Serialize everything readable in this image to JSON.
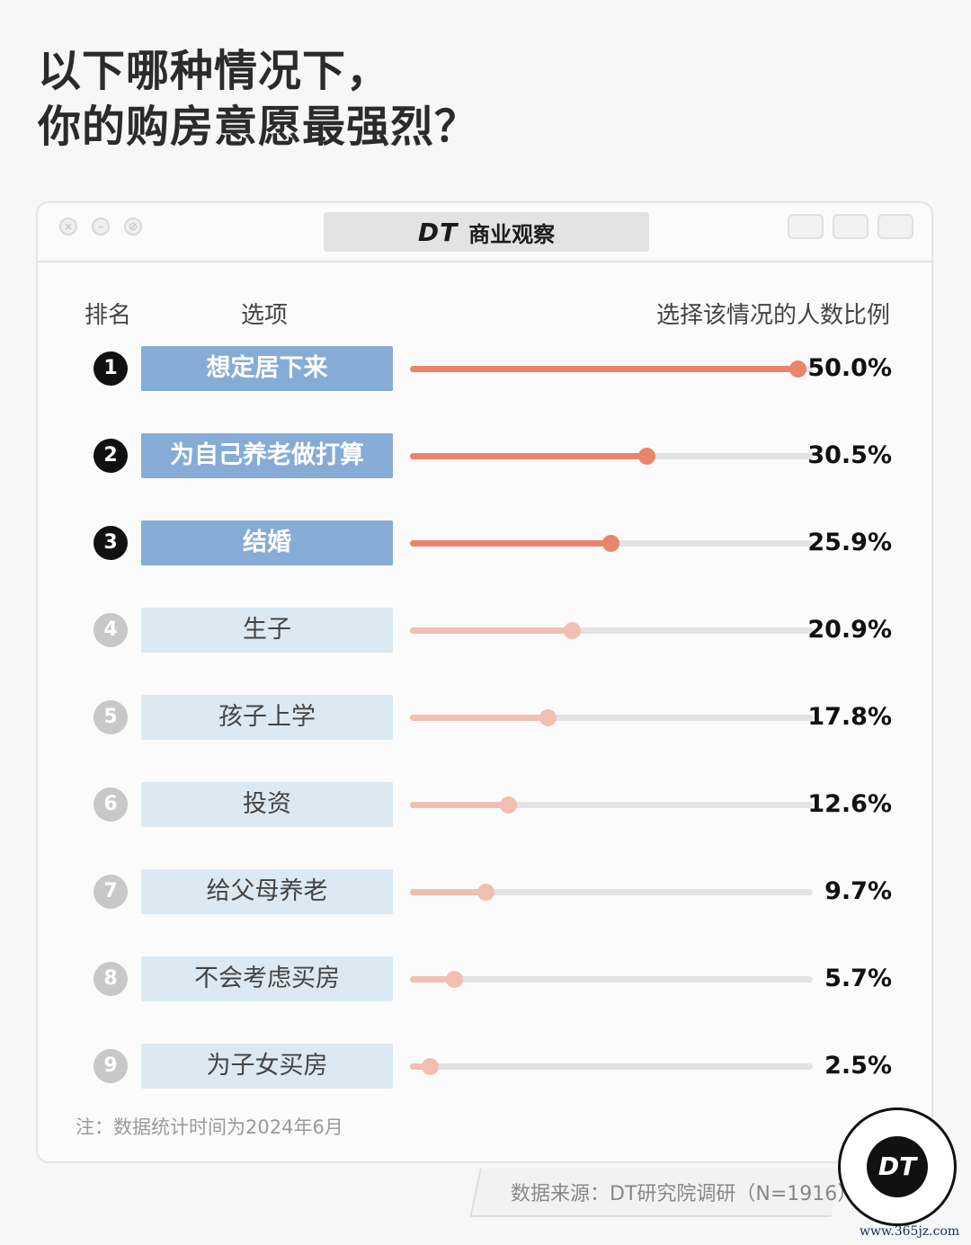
{
  "title": {
    "line1": "以下哪种情况下，",
    "line2": "你的购房意愿最强烈？"
  },
  "window": {
    "brand_logo": "DT",
    "brand_name": "商业观察",
    "controls": [
      "close-icon",
      "minimize-icon",
      "maximize-icon"
    ],
    "right_controls": [
      "record-icon",
      "share-icon",
      "copy-icon"
    ]
  },
  "headers": {
    "rank": "排名",
    "option": "选项",
    "value": "选择该情况的人数比例"
  },
  "colors": {
    "top_bar": "#e8856a",
    "low_bar": "#f1bfb1",
    "top_label_bg": "#86acd5",
    "low_label_bg": "#dce9f3"
  },
  "chart_data": {
    "type": "bar",
    "categories": [
      "想定居下来",
      "为自己养老做打算",
      "结婚",
      "生子",
      "孩子上学",
      "投资",
      "给父母养老",
      "不会考虑买房",
      "为子女买房"
    ],
    "ranks": [
      "1",
      "2",
      "3",
      "4",
      "5",
      "6",
      "7",
      "8",
      "9"
    ],
    "values": [
      50.0,
      30.5,
      25.9,
      20.9,
      17.8,
      12.6,
      9.7,
      5.7,
      2.5
    ],
    "value_labels": [
      "50.0%",
      "30.5%",
      "25.9%",
      "20.9%",
      "17.8%",
      "12.6%",
      "9.7%",
      "5.7%",
      "2.5%"
    ],
    "highlighted_top": 3,
    "title": "以下哪种情况下，你的购房意愿最强烈？",
    "xlabel": "",
    "ylabel": "选择该情况的人数比例",
    "ylim": [
      0,
      52
    ]
  },
  "note": "注：数据统计时间为2024年6月",
  "source": "数据来源：DT研究院调研（N=1916）",
  "logo": "DT",
  "watermark_url": "www.365jz.com"
}
